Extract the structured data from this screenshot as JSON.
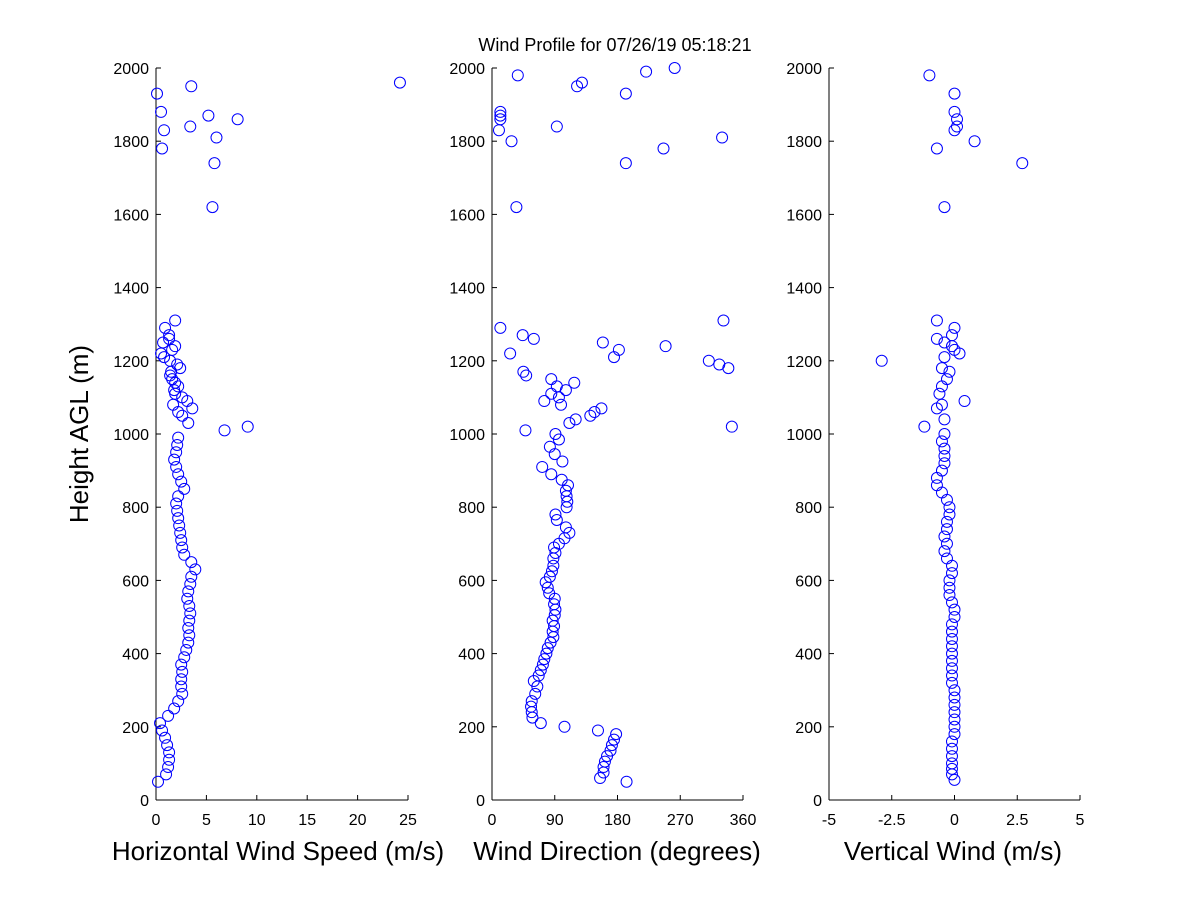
{
  "colors": {
    "marker": "#0000ff",
    "axis": "#000000",
    "background": "#ffffff"
  },
  "chart_data": {
    "title": "Wind Profile for  07/26/19 05:18:21",
    "type": "scatter",
    "shared_ylabel": "Height AGL (m)",
    "ylim": [
      0,
      2000
    ],
    "yticks": [
      0,
      200,
      400,
      600,
      800,
      1000,
      1200,
      1400,
      1600,
      1800,
      2000
    ],
    "panels": [
      {
        "xlabel": "Horizontal Wind Speed (m/s)",
        "xlim": [
          0,
          25
        ],
        "xticks": [
          0,
          5,
          10,
          15,
          20,
          25
        ],
        "xtick_labels": [
          "0",
          "5",
          "10",
          "15",
          "20",
          "25"
        ],
        "ytick_labels": [
          "0",
          "200",
          "400",
          "600",
          "800",
          "1000",
          "1200",
          "1400",
          "1600",
          "1800",
          "2000"
        ],
        "points": [
          [
            0.2,
            50
          ],
          [
            1.0,
            70
          ],
          [
            1.2,
            90
          ],
          [
            1.3,
            110
          ],
          [
            1.3,
            130
          ],
          [
            1.1,
            150
          ],
          [
            0.9,
            170
          ],
          [
            0.6,
            190
          ],
          [
            0.4,
            210
          ],
          [
            1.2,
            230
          ],
          [
            1.8,
            250
          ],
          [
            2.2,
            270
          ],
          [
            2.6,
            290
          ],
          [
            2.5,
            310
          ],
          [
            2.5,
            330
          ],
          [
            2.6,
            350
          ],
          [
            2.5,
            370
          ],
          [
            2.8,
            390
          ],
          [
            3.0,
            410
          ],
          [
            3.2,
            430
          ],
          [
            3.3,
            450
          ],
          [
            3.2,
            470
          ],
          [
            3.3,
            490
          ],
          [
            3.4,
            510
          ],
          [
            3.3,
            530
          ],
          [
            3.1,
            550
          ],
          [
            3.2,
            570
          ],
          [
            3.4,
            590
          ],
          [
            3.5,
            610
          ],
          [
            3.9,
            630
          ],
          [
            3.5,
            650
          ],
          [
            2.8,
            670
          ],
          [
            2.6,
            690
          ],
          [
            2.5,
            710
          ],
          [
            2.4,
            730
          ],
          [
            2.3,
            750
          ],
          [
            2.2,
            770
          ],
          [
            2.1,
            790
          ],
          [
            2.0,
            810
          ],
          [
            2.2,
            830
          ],
          [
            2.8,
            850
          ],
          [
            2.5,
            870
          ],
          [
            2.2,
            890
          ],
          [
            2.0,
            910
          ],
          [
            1.8,
            930
          ],
          [
            2.0,
            950
          ],
          [
            2.1,
            970
          ],
          [
            2.2,
            990
          ],
          [
            6.8,
            1010
          ],
          [
            9.1,
            1020
          ],
          [
            3.2,
            1030
          ],
          [
            2.6,
            1050
          ],
          [
            2.2,
            1060
          ],
          [
            3.6,
            1070
          ],
          [
            1.7,
            1080
          ],
          [
            3.1,
            1090
          ],
          [
            2.6,
            1100
          ],
          [
            1.9,
            1110
          ],
          [
            1.8,
            1120
          ],
          [
            2.2,
            1130
          ],
          [
            1.9,
            1140
          ],
          [
            1.6,
            1150
          ],
          [
            1.4,
            1160
          ],
          [
            1.5,
            1170
          ],
          [
            2.4,
            1180
          ],
          [
            2.1,
            1190
          ],
          [
            1.4,
            1200
          ],
          [
            0.8,
            1210
          ],
          [
            0.5,
            1220
          ],
          [
            1.6,
            1230
          ],
          [
            1.9,
            1240
          ],
          [
            0.7,
            1250
          ],
          [
            1.3,
            1260
          ],
          [
            1.3,
            1270
          ],
          [
            0.9,
            1290
          ],
          [
            1.9,
            1310
          ],
          [
            5.6,
            1620
          ],
          [
            5.8,
            1740
          ],
          [
            0.6,
            1780
          ],
          [
            6.0,
            1810
          ],
          [
            0.8,
            1830
          ],
          [
            3.4,
            1840
          ],
          [
            8.1,
            1860
          ],
          [
            5.2,
            1870
          ],
          [
            0.5,
            1880
          ],
          [
            0.1,
            1930
          ],
          [
            3.5,
            1950
          ],
          [
            24.2,
            1960
          ]
        ]
      },
      {
        "xlabel": "Wind Direction (degrees)",
        "xlim": [
          0,
          360
        ],
        "xticks": [
          0,
          90,
          180,
          270,
          360
        ],
        "xtick_labels": [
          "0",
          "90",
          "180",
          "270",
          "360"
        ],
        "ytick_labels": [
          "0",
          "200",
          "400",
          "600",
          "800",
          "1000",
          "1200",
          "1400",
          "1600",
          "1800",
          "2000"
        ],
        "points": [
          [
            193,
            50
          ],
          [
            155,
            60
          ],
          [
            160,
            75
          ],
          [
            160,
            90
          ],
          [
            162,
            105
          ],
          [
            165,
            120
          ],
          [
            170,
            135
          ],
          [
            172,
            150
          ],
          [
            175,
            165
          ],
          [
            178,
            180
          ],
          [
            152,
            190
          ],
          [
            104,
            200
          ],
          [
            70,
            210
          ],
          [
            58,
            225
          ],
          [
            57,
            240
          ],
          [
            56,
            255
          ],
          [
            57,
            270
          ],
          [
            62,
            290
          ],
          [
            65,
            310
          ],
          [
            60,
            325
          ],
          [
            67,
            340
          ],
          [
            70,
            355
          ],
          [
            73,
            370
          ],
          [
            75,
            385
          ],
          [
            78,
            400
          ],
          [
            80,
            415
          ],
          [
            84,
            430
          ],
          [
            88,
            445
          ],
          [
            87,
            460
          ],
          [
            89,
            475
          ],
          [
            87,
            490
          ],
          [
            90,
            505
          ],
          [
            91,
            520
          ],
          [
            89,
            535
          ],
          [
            90,
            550
          ],
          [
            82,
            565
          ],
          [
            80,
            580
          ],
          [
            77,
            595
          ],
          [
            83,
            610
          ],
          [
            86,
            625
          ],
          [
            88,
            640
          ],
          [
            88,
            660
          ],
          [
            91,
            675
          ],
          [
            89,
            690
          ],
          [
            96,
            700
          ],
          [
            104,
            715
          ],
          [
            111,
            730
          ],
          [
            106,
            745
          ],
          [
            93,
            765
          ],
          [
            91,
            780
          ],
          [
            107,
            800
          ],
          [
            108,
            815
          ],
          [
            107,
            830
          ],
          [
            106,
            845
          ],
          [
            109,
            860
          ],
          [
            100,
            875
          ],
          [
            85,
            890
          ],
          [
            72,
            910
          ],
          [
            101,
            925
          ],
          [
            90,
            945
          ],
          [
            83,
            965
          ],
          [
            96,
            985
          ],
          [
            91,
            1000
          ],
          [
            48,
            1010
          ],
          [
            111,
            1030
          ],
          [
            120,
            1040
          ],
          [
            141,
            1050
          ],
          [
            147,
            1060
          ],
          [
            157,
            1070
          ],
          [
            99,
            1080
          ],
          [
            75,
            1090
          ],
          [
            96,
            1100
          ],
          [
            85,
            1110
          ],
          [
            106,
            1120
          ],
          [
            93,
            1130
          ],
          [
            118,
            1140
          ],
          [
            85,
            1150
          ],
          [
            49,
            1160
          ],
          [
            45,
            1170
          ],
          [
            339,
            1180
          ],
          [
            326,
            1190
          ],
          [
            311,
            1200
          ],
          [
            26,
            1220
          ],
          [
            182,
            1230
          ],
          [
            249,
            1240
          ],
          [
            159,
            1250
          ],
          [
            60,
            1260
          ],
          [
            44,
            1270
          ],
          [
            12,
            1290
          ],
          [
            332,
            1310
          ],
          [
            344,
            1020
          ],
          [
            175,
            1210
          ],
          [
            35,
            1620
          ],
          [
            192,
            1740
          ],
          [
            246,
            1780
          ],
          [
            28,
            1800
          ],
          [
            330,
            1810
          ],
          [
            93,
            1840
          ],
          [
            10,
            1830
          ],
          [
            12,
            1860
          ],
          [
            12,
            1870
          ],
          [
            12,
            1880
          ],
          [
            192,
            1930
          ],
          [
            122,
            1950
          ],
          [
            129,
            1960
          ],
          [
            37,
            1980
          ],
          [
            221,
            1990
          ],
          [
            262,
            2000
          ]
        ]
      },
      {
        "xlabel": "Vertical Wind (m/s)",
        "xlim": [
          -5,
          5
        ],
        "xticks": [
          -5,
          -2.5,
          0,
          2.5,
          5
        ],
        "xtick_labels": [
          "-5",
          "-2.5",
          "0",
          "2.5",
          "5"
        ],
        "ytick_labels": [
          "0",
          "200",
          "400",
          "600",
          "800",
          "1000",
          "1200",
          "1400",
          "1600",
          "1800",
          "2000"
        ],
        "points": [
          [
            0.0,
            55
          ],
          [
            -0.1,
            70
          ],
          [
            -0.1,
            85
          ],
          [
            -0.1,
            100
          ],
          [
            -0.1,
            120
          ],
          [
            -0.1,
            140
          ],
          [
            -0.1,
            160
          ],
          [
            0.0,
            180
          ],
          [
            0.0,
            200
          ],
          [
            0.0,
            220
          ],
          [
            0.0,
            240
          ],
          [
            0.0,
            260
          ],
          [
            0.0,
            280
          ],
          [
            0.0,
            300
          ],
          [
            -0.1,
            320
          ],
          [
            -0.1,
            340
          ],
          [
            -0.1,
            360
          ],
          [
            -0.1,
            380
          ],
          [
            -0.1,
            400
          ],
          [
            -0.1,
            420
          ],
          [
            -0.1,
            440
          ],
          [
            -0.1,
            460
          ],
          [
            -0.1,
            480
          ],
          [
            0.0,
            500
          ],
          [
            0.0,
            520
          ],
          [
            -0.1,
            540
          ],
          [
            -0.2,
            560
          ],
          [
            -0.2,
            580
          ],
          [
            -0.2,
            600
          ],
          [
            -0.1,
            620
          ],
          [
            -0.1,
            640
          ],
          [
            -0.3,
            660
          ],
          [
            -0.4,
            680
          ],
          [
            -0.3,
            700
          ],
          [
            -0.4,
            720
          ],
          [
            -0.3,
            740
          ],
          [
            -0.3,
            760
          ],
          [
            -0.2,
            780
          ],
          [
            -0.2,
            800
          ],
          [
            -0.3,
            820
          ],
          [
            -0.5,
            840
          ],
          [
            -0.7,
            860
          ],
          [
            -0.7,
            880
          ],
          [
            -0.5,
            900
          ],
          [
            -0.4,
            920
          ],
          [
            -0.4,
            940
          ],
          [
            -0.4,
            960
          ],
          [
            -0.5,
            980
          ],
          [
            -0.4,
            1000
          ],
          [
            -1.2,
            1020
          ],
          [
            -0.4,
            1040
          ],
          [
            -0.7,
            1070
          ],
          [
            -0.5,
            1080
          ],
          [
            0.4,
            1090
          ],
          [
            -0.6,
            1110
          ],
          [
            -0.5,
            1130
          ],
          [
            -0.3,
            1150
          ],
          [
            -0.2,
            1170
          ],
          [
            -0.5,
            1180
          ],
          [
            -2.9,
            1200
          ],
          [
            -0.4,
            1210
          ],
          [
            0.2,
            1220
          ],
          [
            0.0,
            1230
          ],
          [
            -0.1,
            1240
          ],
          [
            -0.4,
            1250
          ],
          [
            -0.7,
            1260
          ],
          [
            -0.1,
            1270
          ],
          [
            0.0,
            1290
          ],
          [
            -0.7,
            1310
          ],
          [
            -0.4,
            1620
          ],
          [
            2.7,
            1740
          ],
          [
            -0.7,
            1780
          ],
          [
            0.8,
            1800
          ],
          [
            0.0,
            1830
          ],
          [
            0.1,
            1840
          ],
          [
            0.1,
            1860
          ],
          [
            0.0,
            1880
          ],
          [
            0.0,
            1930
          ],
          [
            -1.0,
            1980
          ]
        ]
      }
    ]
  }
}
